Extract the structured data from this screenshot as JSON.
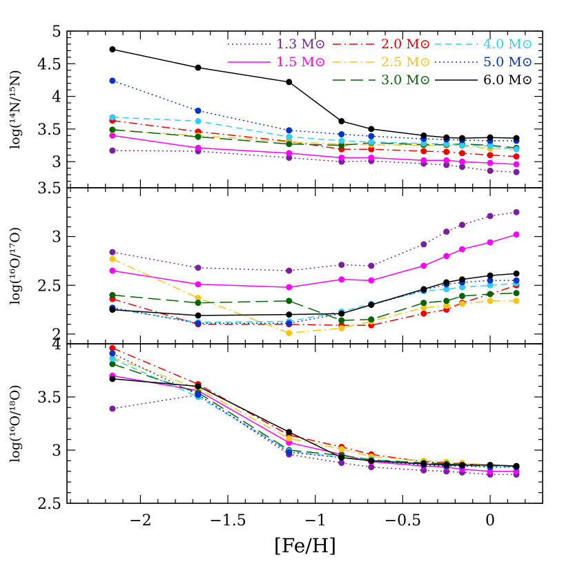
{
  "chart_data": {
    "type": "line",
    "x_label": "[Fe/H]",
    "x_lim": [
      -2.42,
      0.3
    ],
    "x_ticks": [
      -2,
      -1.5,
      -1,
      -0.5,
      0
    ],
    "x_tick_labels": [
      "−2",
      "−1.5",
      "−1",
      "−0.5",
      "0"
    ],
    "series_styles": [
      {
        "name": "1.3 M⊙",
        "color": "#7B1FA2",
        "dash": "dotted"
      },
      {
        "name": "1.5 M⊙",
        "color": "#FF00FF",
        "dash": "solid"
      },
      {
        "name": "2.0 M⊙",
        "color": "#EE0000",
        "dash": "dashdot"
      },
      {
        "name": "2.5 M⊙",
        "color": "#F5C518",
        "dash": "dashdot"
      },
      {
        "name": "3.0 M⊙",
        "color": "#006400",
        "dash": "longdash"
      },
      {
        "name": "4.0 M⊙",
        "color": "#33CCFF",
        "dash": "dashed"
      },
      {
        "name": "5.0 M⊙",
        "color": "#0033CC",
        "dash": "dotted"
      },
      {
        "name": "6.0 M⊙",
        "color": "#000000",
        "dash": "solid"
      }
    ],
    "panels": [
      {
        "ylabel": "log(¹⁴N/¹⁵N)",
        "ylim": [
          2.6,
          5.0
        ],
        "y_ticks": [
          3,
          3.5,
          4,
          4.5,
          5
        ],
        "y_tick_labels": [
          "3",
          "3.5",
          "4",
          "4.5",
          "5"
        ],
        "y_tick_top_extra": "3.5",
        "series": [
          {
            "x": [
              -2.16,
              -1.67,
              -1.15,
              -0.85,
              -0.68,
              -0.38,
              -0.25,
              -0.16,
              0.0,
              0.15
            ],
            "values": [
              3.17,
              3.16,
              3.06,
              3.0,
              3.01,
              2.97,
              2.95,
              2.92,
              2.86,
              2.84
            ]
          },
          {
            "x": [
              -2.16,
              -1.67,
              -1.15,
              -0.85,
              -0.68,
              -0.38,
              -0.25,
              -0.16,
              0.0,
              0.15
            ],
            "values": [
              3.4,
              3.21,
              3.13,
              3.06,
              3.06,
              3.02,
              3.02,
              3.0,
              2.98,
              2.96
            ]
          },
          {
            "x": [
              -2.16,
              -1.67,
              -1.15,
              -0.85,
              -0.68,
              -0.38,
              -0.25,
              -0.16,
              0.0,
              0.15
            ],
            "values": [
              3.63,
              3.46,
              3.31,
              3.19,
              3.19,
              3.16,
              3.15,
              3.13,
              3.1,
              3.08
            ]
          },
          {
            "x": [
              -2.16,
              -1.67,
              -1.15,
              -0.85,
              -0.68,
              -0.38,
              -0.25,
              -0.16,
              0.0,
              0.15
            ],
            "values": [
              3.48,
              3.4,
              3.3,
              3.27,
              3.26,
              3.25,
              3.25,
              3.24,
              3.2,
              3.19
            ]
          },
          {
            "x": [
              -2.16,
              -1.67,
              -1.15,
              -0.85,
              -0.68,
              -0.38,
              -0.25,
              -0.16,
              0.0,
              0.15
            ],
            "values": [
              3.49,
              3.38,
              3.27,
              3.25,
              3.29,
              3.26,
              3.26,
              3.27,
              3.25,
              3.21
            ]
          },
          {
            "x": [
              -2.16,
              -1.67,
              -1.15,
              -0.85,
              -0.68,
              -0.38,
              -0.25,
              -0.16,
              0.0,
              0.15
            ],
            "values": [
              3.68,
              3.62,
              3.38,
              3.32,
              3.3,
              3.28,
              3.27,
              3.25,
              3.24,
              3.19
            ]
          },
          {
            "x": [
              -2.16,
              -1.67,
              -1.15,
              -0.85,
              -0.68,
              -0.38,
              -0.25,
              -0.16,
              0.0,
              0.15
            ],
            "values": [
              4.24,
              3.78,
              3.48,
              3.42,
              3.39,
              3.35,
              3.34,
              3.33,
              3.32,
              3.32
            ]
          },
          {
            "x": [
              -2.16,
              -1.67,
              -1.15,
              -0.85,
              -0.68,
              -0.38,
              -0.25,
              -0.16,
              0.0,
              0.15
            ],
            "values": [
              4.72,
              4.44,
              4.22,
              3.62,
              3.5,
              3.4,
              3.37,
              3.36,
              3.37,
              3.36
            ]
          }
        ]
      },
      {
        "ylabel": "log(¹⁶O/¹⁷O)",
        "ylim": [
          1.9,
          3.5
        ],
        "y_ticks": [
          2,
          2.5,
          3
        ],
        "y_tick_labels": [
          "2",
          "2.5",
          "3"
        ],
        "series": [
          {
            "x": [
              -2.16,
              -1.67,
              -1.15,
              -0.85,
              -0.68,
              -0.38,
              -0.25,
              -0.16,
              0.0,
              0.15
            ],
            "values": [
              2.84,
              2.68,
              2.65,
              2.71,
              2.7,
              2.92,
              3.05,
              3.12,
              3.21,
              3.25
            ]
          },
          {
            "x": [
              -2.16,
              -1.67,
              -1.15,
              -0.85,
              -0.68,
              -0.38,
              -0.25,
              -0.16,
              0.0,
              0.15
            ],
            "values": [
              2.65,
              2.51,
              2.48,
              2.56,
              2.55,
              2.7,
              2.8,
              2.87,
              2.94,
              3.02
            ]
          },
          {
            "x": [
              -2.16,
              -1.67,
              -1.15,
              -0.85,
              -0.68,
              -0.38,
              -0.25,
              -0.16,
              0.0,
              0.15
            ],
            "values": [
              2.36,
              2.1,
              2.1,
              2.09,
              2.09,
              2.21,
              2.25,
              2.32,
              2.41,
              2.5
            ]
          },
          {
            "x": [
              -2.16,
              -1.67,
              -1.15,
              -0.85,
              -0.68,
              -0.38,
              -0.25,
              -0.16,
              0.0,
              0.15
            ],
            "values": [
              2.77,
              2.37,
              2.01,
              2.06,
              2.13,
              2.27,
              2.29,
              2.31,
              2.34,
              2.34
            ]
          },
          {
            "x": [
              -2.16,
              -1.67,
              -1.15,
              -0.85,
              -0.68,
              -0.38,
              -0.25,
              -0.16,
              0.0,
              0.15
            ],
            "values": [
              2.4,
              2.32,
              2.34,
              2.14,
              2.15,
              2.32,
              2.34,
              2.39,
              2.41,
              2.42
            ]
          },
          {
            "x": [
              -2.16,
              -1.67,
              -1.15,
              -0.85,
              -0.68,
              -0.38,
              -0.25,
              -0.16,
              0.0,
              0.15
            ],
            "values": [
              2.26,
              2.12,
              2.13,
              2.23,
              2.31,
              2.44,
              2.46,
              2.48,
              2.5,
              2.52
            ]
          },
          {
            "x": [
              -2.16,
              -1.67,
              -1.15,
              -0.85,
              -0.68,
              -0.38,
              -0.25,
              -0.16,
              0.0,
              0.15
            ],
            "values": [
              2.27,
              2.11,
              2.11,
              2.21,
              2.3,
              2.45,
              2.51,
              2.53,
              2.55,
              2.55
            ]
          },
          {
            "x": [
              -2.16,
              -1.67,
              -1.15,
              -0.85,
              -0.68,
              -0.38,
              -0.25,
              -0.16,
              0.0,
              0.15
            ],
            "values": [
              2.25,
              2.19,
              2.2,
              2.21,
              2.3,
              2.46,
              2.53,
              2.56,
              2.6,
              2.62
            ]
          }
        ]
      },
      {
        "ylabel": "log(¹⁶O/¹⁸O)",
        "ylim": [
          2.5,
          4.0
        ],
        "y_ticks": [
          2.5,
          3,
          3.5,
          4
        ],
        "y_tick_labels": [
          "2.5",
          "3",
          "3.5",
          "4"
        ],
        "series": [
          {
            "x": [
              -2.16,
              -1.67,
              -1.15,
              -0.85,
              -0.68,
              -0.38,
              -0.25,
              -0.16,
              0.0,
              0.15
            ],
            "values": [
              3.39,
              3.52,
              2.96,
              2.88,
              2.84,
              2.81,
              2.8,
              2.79,
              2.77,
              2.77
            ]
          },
          {
            "x": [
              -2.16,
              -1.67,
              -1.15,
              -0.85,
              -0.68,
              -0.38,
              -0.25,
              -0.16,
              0.0,
              0.15
            ],
            "values": [
              3.7,
              3.56,
              3.07,
              2.96,
              2.89,
              2.85,
              2.84,
              2.82,
              2.8,
              2.8
            ]
          },
          {
            "x": [
              -2.16,
              -1.67,
              -1.15,
              -0.85,
              -0.68,
              -0.38,
              -0.25,
              -0.16,
              0.0,
              0.15
            ],
            "values": [
              3.96,
              3.62,
              3.14,
              3.03,
              2.96,
              2.89,
              2.88,
              2.87,
              2.86,
              2.85
            ]
          },
          {
            "x": [
              -2.16,
              -1.67,
              -1.15,
              -0.85,
              -0.68,
              -0.38,
              -0.25,
              -0.16,
              0.0,
              0.15
            ],
            "values": [
              3.87,
              3.58,
              3.11,
              3.01,
              2.94,
              2.9,
              2.89,
              2.88,
              2.86,
              2.85
            ]
          },
          {
            "x": [
              -2.16,
              -1.67,
              -1.15,
              -0.85,
              -0.68,
              -0.38,
              -0.25,
              -0.16,
              0.0,
              0.15
            ],
            "values": [
              3.81,
              3.54,
              3.0,
              2.95,
              2.91,
              2.88,
              2.87,
              2.86,
              2.85,
              2.85
            ]
          },
          {
            "x": [
              -2.16,
              -1.67,
              -1.15,
              -0.85,
              -0.68,
              -0.38,
              -0.25,
              -0.16,
              0.0,
              0.15
            ],
            "values": [
              3.86,
              3.5,
              2.99,
              2.93,
              2.91,
              2.87,
              2.86,
              2.85,
              2.85,
              2.84
            ]
          },
          {
            "x": [
              -2.16,
              -1.67,
              -1.15,
              -0.85,
              -0.68,
              -0.38,
              -0.25,
              -0.16,
              0.0,
              0.15
            ],
            "values": [
              3.91,
              3.52,
              2.98,
              2.93,
              2.9,
              2.86,
              2.85,
              2.85,
              2.84,
              2.84
            ]
          },
          {
            "x": [
              -2.16,
              -1.67,
              -1.15,
              -0.85,
              -0.68,
              -0.38,
              -0.25,
              -0.16,
              0.0,
              0.15
            ],
            "values": [
              3.67,
              3.6,
              3.17,
              2.93,
              2.9,
              2.87,
              2.86,
              2.86,
              2.86,
              2.85
            ]
          }
        ]
      }
    ],
    "legend": {
      "placement": "top-right of top panel",
      "columns": [
        [
          "1.3 M⊙",
          "1.5 M⊙"
        ],
        [
          "2.0 M⊙",
          "2.5 M⊙",
          "3.0 M⊙"
        ],
        [
          "4.0 M⊙",
          "5.0 M⊙",
          "6.0 M⊙"
        ]
      ]
    },
    "grid": false
  }
}
